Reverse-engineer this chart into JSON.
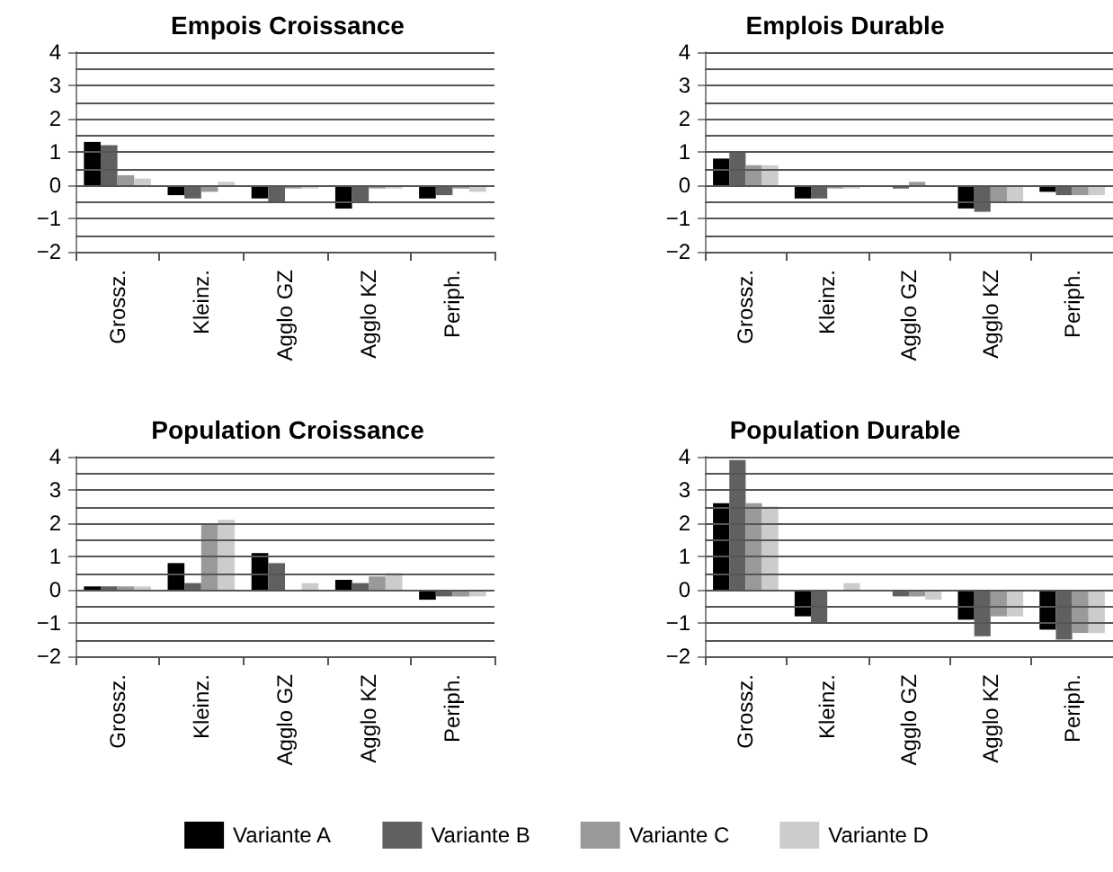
{
  "chart_data": [
    {
      "type": "bar",
      "title": "Empois Croissance",
      "categories": [
        "Grossz.",
        "Kleinz.",
        "Agglo GZ",
        "Agglo KZ",
        "Periph."
      ],
      "ylim": [
        -2,
        4
      ],
      "yticks": [
        -2,
        {
          "value": -1.5,
          "label": null
        },
        -1,
        {
          "value": -0.5,
          "label": null
        },
        0,
        {
          "value": 0.5,
          "label": null
        },
        1,
        {
          "value": 1.5,
          "label": null
        },
        2,
        {
          "value": 2.5,
          "label": null
        },
        3,
        {
          "value": 3.5,
          "label": null
        },
        4
      ],
      "grid": "y",
      "series": [
        {
          "color": "#000000",
          "values": [
            1.3,
            -0.3,
            -0.4,
            -0.7,
            -0.4
          ]
        },
        {
          "color": "#606060",
          "values": [
            1.2,
            -0.4,
            -0.5,
            -0.5,
            -0.3
          ]
        },
        {
          "color": "#999999",
          "values": [
            0.3,
            -0.2,
            -0.1,
            -0.1,
            -0.1
          ]
        },
        {
          "color": "#cccccc",
          "values": [
            0.2,
            0.1,
            -0.1,
            -0.1,
            -0.2
          ]
        }
      ]
    },
    {
      "type": "bar",
      "title": "Emplois Durable",
      "categories": [
        "Grossz.",
        "Kleinz.",
        "Agglo GZ",
        "Agglo KZ",
        "Periph."
      ],
      "ylim": [
        -2,
        4
      ],
      "yticks": [
        -2,
        {
          "value": -1.5,
          "label": null
        },
        -1,
        {
          "value": -0.5,
          "label": null
        },
        0,
        {
          "value": 0.5,
          "label": null
        },
        1,
        {
          "value": 1.5,
          "label": null
        },
        2,
        {
          "value": 2.5,
          "label": null
        },
        3,
        {
          "value": 3.5,
          "label": null
        },
        4
      ],
      "grid": "y",
      "series": [
        {
          "color": "#000000",
          "values": [
            0.8,
            -0.4,
            0,
            -0.7,
            -0.2
          ]
        },
        {
          "color": "#606060",
          "values": [
            1.0,
            -0.4,
            -0.1,
            -0.8,
            -0.3
          ]
        },
        {
          "color": "#999999",
          "values": [
            0.6,
            -0.1,
            0.1,
            -0.5,
            -0.3
          ]
        },
        {
          "color": "#cccccc",
          "values": [
            0.6,
            -0.1,
            0,
            -0.5,
            -0.3
          ]
        }
      ]
    },
    {
      "type": "bar",
      "title": "Population Croissance",
      "categories": [
        "Grossz.",
        "Kleinz.",
        "Agglo GZ",
        "Agglo KZ",
        "Periph."
      ],
      "ylim": [
        -2,
        4
      ],
      "yticks": [
        -2,
        {
          "value": -1.5,
          "label": null
        },
        -1,
        {
          "value": -0.5,
          "label": null
        },
        0,
        {
          "value": 0.5,
          "label": null
        },
        1,
        {
          "value": 1.5,
          "label": null
        },
        2,
        {
          "value": 2.5,
          "label": null
        },
        3,
        {
          "value": 3.5,
          "label": null
        },
        4
      ],
      "grid": "y",
      "series": [
        {
          "color": "#000000",
          "values": [
            0.1,
            0.8,
            1.1,
            0.3,
            -0.3
          ]
        },
        {
          "color": "#606060",
          "values": [
            0.1,
            0.2,
            0.8,
            0.2,
            -0.2
          ]
        },
        {
          "color": "#999999",
          "values": [
            0.1,
            2.0,
            0,
            0.4,
            -0.2
          ]
        },
        {
          "color": "#cccccc",
          "values": [
            0.1,
            2.1,
            0.2,
            0.5,
            -0.2
          ]
        }
      ]
    },
    {
      "type": "bar",
      "title": "Population Durable",
      "categories": [
        "Grossz.",
        "Kleinz.",
        "Agglo GZ",
        "Agglo KZ",
        "Periph."
      ],
      "ylim": [
        -2,
        4
      ],
      "yticks": [
        -2,
        {
          "value": -1.5,
          "label": null
        },
        -1,
        {
          "value": -0.5,
          "label": null
        },
        0,
        {
          "value": 0.5,
          "label": null
        },
        1,
        {
          "value": 1.5,
          "label": null
        },
        2,
        {
          "value": 2.5,
          "label": null
        },
        3,
        {
          "value": 3.5,
          "label": null
        },
        4
      ],
      "grid": "y",
      "legend": "bottom",
      "series": [
        {
          "name": "Variante A",
          "color": "#000000",
          "values": [
            2.6,
            -0.8,
            0,
            -0.9,
            -1.2
          ]
        },
        {
          "name": "Variante B",
          "color": "#606060",
          "values": [
            3.9,
            -1.0,
            -0.2,
            -1.4,
            -1.5
          ]
        },
        {
          "name": "Variante C",
          "color": "#999999",
          "values": [
            2.6,
            0,
            -0.2,
            -0.8,
            -1.3
          ]
        },
        {
          "name": "Variante D",
          "color": "#cccccc",
          "values": [
            2.5,
            0.2,
            -0.3,
            -0.8,
            -1.3
          ]
        }
      ]
    }
  ]
}
